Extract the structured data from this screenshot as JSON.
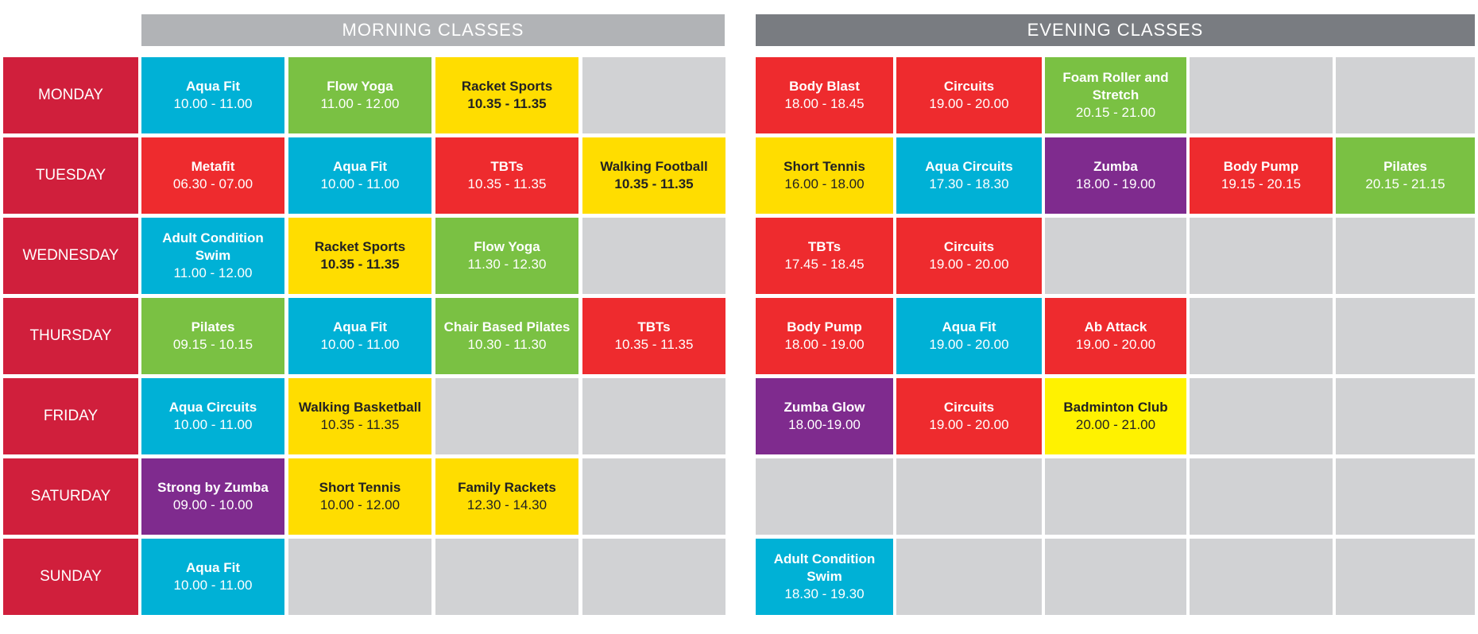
{
  "headers": {
    "morning": "MORNING CLASSES",
    "evening": "EVENING CLASSES"
  },
  "days": [
    "MONDAY",
    "TUESDAY",
    "WEDNESDAY",
    "THURSDAY",
    "FRIDAY",
    "SATURDAY",
    "SUNDAY"
  ],
  "colors": {
    "day": "#d01f3c",
    "blue": "#00b1d6",
    "green": "#7ac143",
    "red": "#ee2b2e",
    "purple": "#7f2b8e",
    "yellow": "#ffdd00",
    "empty": "#d1d2d4"
  },
  "morning": [
    [
      {
        "name": "Aqua Fit",
        "time": "10.00 - 11.00",
        "color": "blue"
      },
      {
        "name": "Flow Yoga",
        "time": "11.00 - 12.00",
        "color": "green"
      },
      {
        "name": "Racket Sports",
        "time": "10.35 - 11.35",
        "color": "yellow",
        "bold": true
      },
      null
    ],
    [
      {
        "name": "Metafit",
        "time": "06.30 - 07.00",
        "color": "red"
      },
      {
        "name": "Aqua Fit",
        "time": "10.00 - 11.00",
        "color": "blue"
      },
      {
        "name": "TBTs",
        "time": "10.35 - 11.35",
        "color": "red"
      },
      {
        "name": "Walking Football",
        "time": "10.35 - 11.35",
        "color": "yellow",
        "bold": true
      }
    ],
    [
      {
        "name": "Adult Condition Swim",
        "time": "11.00 - 12.00",
        "color": "blue"
      },
      {
        "name": "Racket Sports",
        "time": "10.35 - 11.35",
        "color": "yellow",
        "bold": true
      },
      {
        "name": "Flow Yoga",
        "time": "11.30 - 12.30",
        "color": "green"
      },
      null
    ],
    [
      {
        "name": "Pilates",
        "time": "09.15 - 10.15",
        "color": "green"
      },
      {
        "name": "Aqua Fit",
        "time": "10.00 - 11.00",
        "color": "blue"
      },
      {
        "name": "Chair Based Pilates",
        "time": "10.30 - 11.30",
        "color": "green"
      },
      {
        "name": "TBTs",
        "time": "10.35 - 11.35",
        "color": "red"
      }
    ],
    [
      {
        "name": "Aqua Circuits",
        "time": "10.00 - 11.00",
        "color": "blue"
      },
      {
        "name": "Walking Basketball",
        "time": "10.35 - 11.35",
        "color": "yellow"
      },
      null,
      null
    ],
    [
      {
        "name": "Strong by Zumba",
        "time": "09.00 - 10.00",
        "color": "purple"
      },
      {
        "name": "Short Tennis",
        "time": "10.00 - 12.00",
        "color": "yellow"
      },
      {
        "name": "Family Rackets",
        "time": "12.30 - 14.30",
        "color": "yellow"
      },
      null
    ],
    [
      {
        "name": "Aqua Fit",
        "time": "10.00 - 11.00",
        "color": "blue"
      },
      null,
      null,
      null
    ]
  ],
  "evening": [
    [
      {
        "name": "Body Blast",
        "time": "18.00 - 18.45",
        "color": "red"
      },
      {
        "name": "Circuits",
        "time": "19.00 - 20.00",
        "color": "red"
      },
      {
        "name": "Foam Roller and Stretch",
        "time": "20.15 - 21.00",
        "color": "green"
      },
      null,
      null
    ],
    [
      {
        "name": "Short Tennis",
        "time": "16.00 - 18.00",
        "color": "yellow"
      },
      {
        "name": "Aqua Circuits",
        "time": "17.30 - 18.30",
        "color": "blue"
      },
      {
        "name": "Zumba",
        "time": "18.00 - 19.00",
        "color": "purple"
      },
      {
        "name": "Body Pump",
        "time": "19.15 - 20.15",
        "color": "red"
      },
      {
        "name": "Pilates",
        "time": "20.15 - 21.15",
        "color": "green"
      }
    ],
    [
      {
        "name": "TBTs",
        "time": "17.45 - 18.45",
        "color": "red"
      },
      {
        "name": "Circuits",
        "time": "19.00 - 20.00",
        "color": "red"
      },
      null,
      null,
      null
    ],
    [
      {
        "name": "Body Pump",
        "time": "18.00 - 19.00",
        "color": "red"
      },
      {
        "name": "Aqua Fit",
        "time": "19.00 - 20.00",
        "color": "blue"
      },
      {
        "name": "Ab Attack",
        "time": "19.00 - 20.00",
        "color": "red"
      },
      null,
      null
    ],
    [
      {
        "name": "Zumba Glow",
        "time": "18.00-19.00",
        "color": "purple"
      },
      {
        "name": "Circuits",
        "time": "19.00 - 20.00",
        "color": "red"
      },
      {
        "name": "Badminton Club",
        "time": "20.00 - 21.00",
        "color": "yellow-bright"
      },
      null,
      null
    ],
    [
      null,
      null,
      null,
      null,
      null
    ],
    [
      {
        "name": "Adult Condition Swim",
        "time": "18.30 - 19.30",
        "color": "blue"
      },
      null,
      null,
      null,
      null
    ]
  ]
}
